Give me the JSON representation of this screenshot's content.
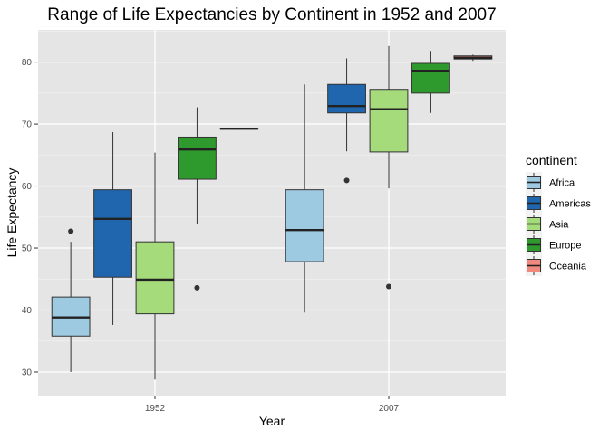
{
  "chart_data": {
    "type": "boxplot",
    "title": "Range of Life Expectancies by Continent in 1952 and 2007",
    "xlabel": "Year",
    "ylabel": "Life Expectancy",
    "categories": [
      "1952",
      "2007"
    ],
    "ylim": [
      26.2,
      85.2
    ],
    "yticks": [
      30,
      40,
      50,
      60,
      70,
      80
    ],
    "grid": true,
    "legend": {
      "title": "continent",
      "position": "right"
    },
    "series": [
      {
        "name": "Africa",
        "color": "#9ECAE1",
        "boxes": [
          {
            "min": 30.0,
            "q1": 35.8,
            "median": 38.8,
            "q3": 42.1,
            "max": 51.0,
            "outliers": [
              52.7
            ]
          },
          {
            "min": 39.6,
            "q1": 47.8,
            "median": 52.9,
            "q3": 59.4,
            "max": 76.4,
            "outliers": []
          }
        ]
      },
      {
        "name": "Americas",
        "color": "#1F66AE",
        "boxes": [
          {
            "min": 37.6,
            "q1": 45.3,
            "median": 54.7,
            "q3": 59.4,
            "max": 68.7,
            "outliers": []
          },
          {
            "min": 65.6,
            "q1": 71.8,
            "median": 72.9,
            "q3": 76.4,
            "max": 80.6,
            "outliers": [
              60.9
            ]
          }
        ]
      },
      {
        "name": "Asia",
        "color": "#A6DB7C",
        "boxes": [
          {
            "min": 28.8,
            "q1": 39.4,
            "median": 44.9,
            "q3": 51.0,
            "max": 65.4,
            "outliers": []
          },
          {
            "min": 59.6,
            "q1": 65.5,
            "median": 72.4,
            "q3": 75.6,
            "max": 82.6,
            "outliers": [
              43.8
            ]
          }
        ]
      },
      {
        "name": "Europe",
        "color": "#2E9A2E",
        "boxes": [
          {
            "min": 53.8,
            "q1": 61.1,
            "median": 65.9,
            "q3": 67.9,
            "max": 72.7,
            "outliers": [
              43.6
            ]
          },
          {
            "min": 71.8,
            "q1": 75.0,
            "median": 78.6,
            "q3": 79.8,
            "max": 81.8,
            "outliers": []
          }
        ]
      },
      {
        "name": "Oceania",
        "color": "#F18A7E",
        "boxes": [
          {
            "min": 69.1,
            "q1": 69.2,
            "median": 69.25,
            "q3": 69.3,
            "max": 69.4,
            "outliers": []
          },
          {
            "min": 80.2,
            "q1": 80.5,
            "median": 80.7,
            "q3": 81.0,
            "max": 81.2,
            "outliers": []
          }
        ]
      }
    ]
  }
}
